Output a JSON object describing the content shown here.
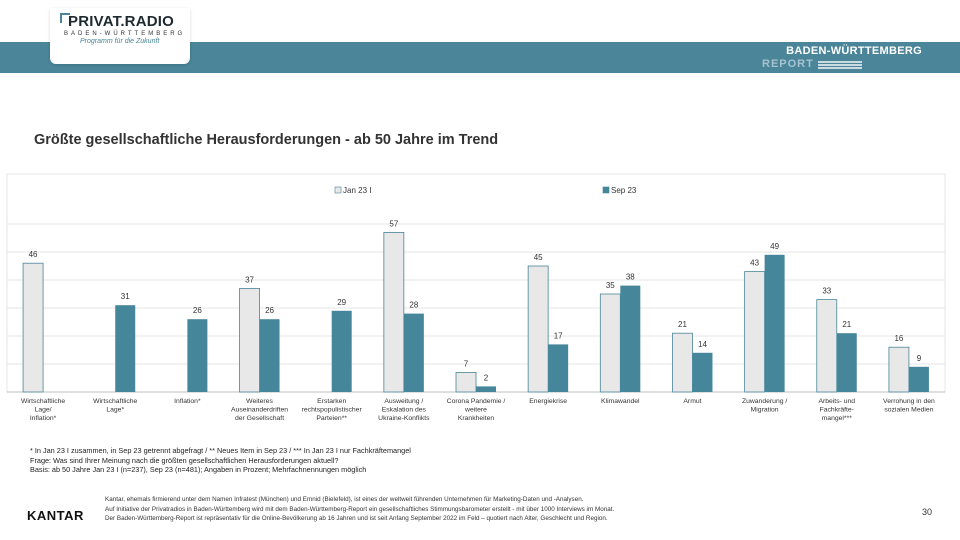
{
  "header": {
    "logo_title": "PRIVAT.RADIO",
    "logo_subtitle": "BADEN-WÜRTTEMBERG",
    "logo_tagline": "Programm für die Zukunft",
    "report_title": "BADEN-WÜRTTEMBERG",
    "report_subtitle": "REPORT"
  },
  "chart_title": "Größte gesellschaftliche Herausforderungen - ab 50 Jahre im Trend",
  "chart_data": {
    "type": "bar",
    "title": "Größte gesellschaftliche Herausforderungen - ab 50 Jahre im Trend",
    "legend_position": "top",
    "grid": true,
    "ylim": [
      0,
      60
    ],
    "categories": [
      [
        "Wirtschaftliche",
        "Lage/",
        "Inflation*"
      ],
      [
        "Wirtschaftliche",
        "Lage*"
      ],
      [
        "Inflation*"
      ],
      [
        "Weiteres",
        "Auseinanderdriften",
        "der Gesellschaft"
      ],
      [
        "Erstarken",
        "rechtspopulistischer",
        "Parteien**"
      ],
      [
        "Ausweitung /",
        "Eskalation des",
        "Ukraine-Konflikts"
      ],
      [
        "Corona Pandemie /",
        "weitere",
        "Krankheiten"
      ],
      [
        "Energiekrise"
      ],
      [
        "Klimawandel"
      ],
      [
        "Armut"
      ],
      [
        "Zuwanderung /",
        "Migration"
      ],
      [
        "Arbeits- und",
        "Fachkräfte-",
        "mangel***"
      ],
      [
        "Verrohung in den",
        "sozialen Medien"
      ]
    ],
    "series": [
      {
        "name": "Jan 23 I",
        "color": "#e8e8e8",
        "stroke": "#4a8599",
        "values": [
          46,
          null,
          null,
          37,
          null,
          57,
          7,
          45,
          35,
          21,
          43,
          33,
          16
        ]
      },
      {
        "name": "Sep 23",
        "color": "#45869b",
        "values": [
          null,
          31,
          26,
          26,
          29,
          28,
          2,
          17,
          38,
          14,
          49,
          21,
          9
        ]
      }
    ]
  },
  "notes": [
    "* In Jan 23 I zusammen, in Sep 23 getrennt abgefragt / ** Neues Item in Sep 23 / *** In Jan 23 I nur Fachkräftemangel",
    "Frage: Was sind Ihrer Meinung nach die größten gesellschaftlichen Herausforderungen aktuell?",
    "Basis: ab 50 Jahre Jan 23 I (n=237), Sep 23 (n=481); Angaben in Prozent; Mehrfachnennungen möglich"
  ],
  "footer": {
    "brand": "KANTAR",
    "lines": [
      "Kantar, ehemals firmierend unter dem Namen Infratest (München) und Emnid (Bielefeld), ist eines der weltweit führenden Unternehmen für Marketing-Daten und -Analysen.",
      "Auf Initiative der Privatradios in Baden-Württemberg wird mit dem Baden-Württemberg-Report ein gesellschaftliches Stimmungsbarometer erstellt - mit über 1000 Interviews im Monat.",
      "Der Baden-Württemberg-Report ist repräsentativ für die Online-Bevölkerung ab 16 Jahren und ist seit Anfang September 2022 im Feld – quotiert nach Alter, Geschlecht und Region."
    ],
    "page_number": "30"
  }
}
